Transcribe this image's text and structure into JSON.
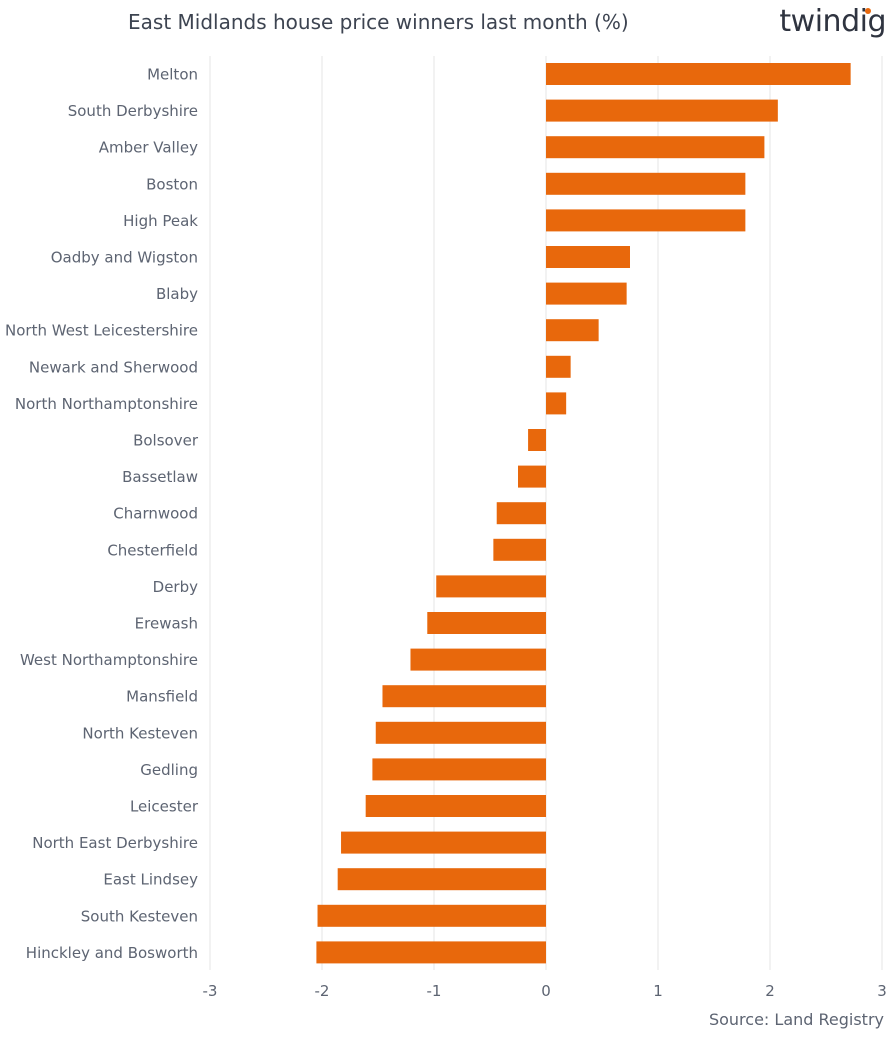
{
  "header": {
    "title": "East Midlands house price winners last month (%)",
    "logo": "twindig"
  },
  "footer": {
    "source": "Source: Land Registry"
  },
  "colors": {
    "bar": "#e8680c",
    "grid": "#e4e4e4",
    "text": "#5d6472"
  },
  "chart_data": {
    "type": "bar",
    "orientation": "horizontal",
    "title": "East Midlands house price winners last month (%)",
    "xlabel": "",
    "ylabel": "",
    "xlim": [
      -3,
      3
    ],
    "xticks": [
      -3,
      -2,
      -1,
      0,
      1,
      2,
      3
    ],
    "grid": true,
    "categories": [
      "Melton",
      "South Derbyshire",
      "Amber Valley",
      "Boston",
      "High Peak",
      "Oadby and Wigston",
      "Blaby",
      "North West Leicestershire",
      "Newark and Sherwood",
      "North Northamptonshire",
      "Bolsover",
      "Bassetlaw",
      "Charnwood",
      "Chesterfield",
      "Derby",
      "Erewash",
      "West Northamptonshire",
      "Mansfield",
      "North Kesteven",
      "Gedling",
      "Leicester",
      "North East Derbyshire",
      "East Lindsey",
      "South Kesteven",
      "Hinckley and Bosworth"
    ],
    "values": [
      2.72,
      2.07,
      1.95,
      1.78,
      1.78,
      0.75,
      0.72,
      0.47,
      0.22,
      0.18,
      -0.16,
      -0.25,
      -0.44,
      -0.47,
      -0.98,
      -1.06,
      -1.21,
      -1.46,
      -1.52,
      -1.55,
      -1.61,
      -1.83,
      -1.86,
      -2.04,
      -2.05
    ]
  }
}
